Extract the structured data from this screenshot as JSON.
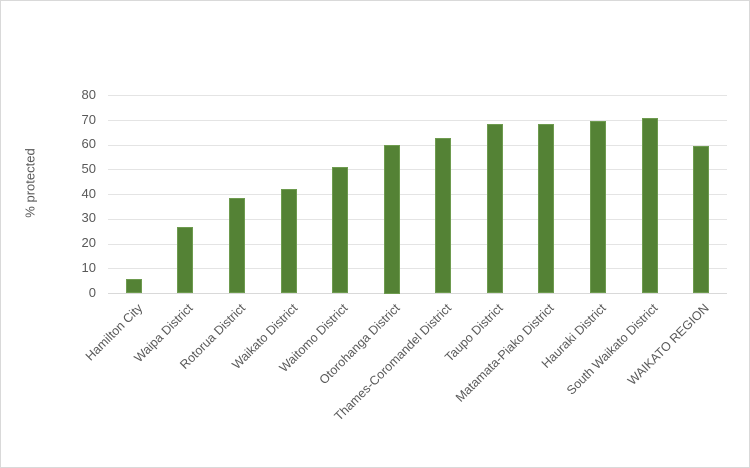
{
  "chart_data": {
    "type": "bar",
    "title": "",
    "xlabel": "",
    "ylabel": "% protected",
    "ylim": [
      0,
      80
    ],
    "yticks": [
      0,
      10,
      20,
      30,
      40,
      50,
      60,
      70,
      80
    ],
    "grid": true,
    "legend": null,
    "bar_color": "#548235",
    "categories": [
      "Hamilton City",
      "Waipa District",
      "Rotorua District",
      "Waikato District",
      "Waitomo District",
      "Otorohanga District",
      "Thames-Coromandel District",
      "Taupo District",
      "Matamata-Piako District",
      "Hauraki District",
      "South Waikato District",
      "WAIKATO REGION"
    ],
    "values": [
      5.5,
      26.5,
      38.2,
      42.0,
      50.8,
      60.0,
      62.7,
      68.2,
      68.4,
      69.6,
      70.6,
      59.3
    ]
  },
  "axis": {
    "y_title": "% protected",
    "y_tick_labels": [
      "80",
      "70",
      "60",
      "50",
      "40",
      "30",
      "20",
      "10",
      "0"
    ]
  }
}
